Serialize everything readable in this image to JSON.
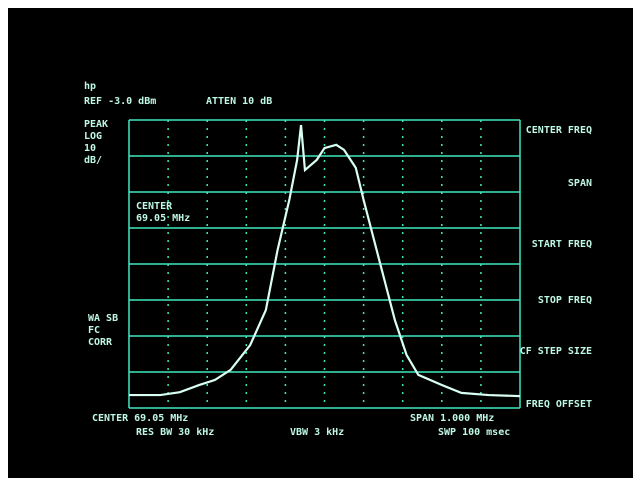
{
  "chart_data": {
    "type": "line",
    "header": {
      "mode": "hp",
      "reference": "REF -3.0 dBm",
      "attenuation": "ATTEN 10 dB"
    },
    "left_labels": [
      "PEAK",
      "LOG",
      "10",
      "dB/"
    ],
    "left_lower_labels": [
      "WA SB",
      "FC",
      "CORR"
    ],
    "center_annotation": [
      "CENTER",
      "69.05 MHz"
    ],
    "softkeys": [
      "CENTER FREQ",
      "SPAN",
      "START FREQ",
      "STOP FREQ",
      "CF STEP SIZE",
      "FREQ OFFSET"
    ],
    "footer": {
      "center": "CENTER 69.05 MHz",
      "res_bw": "RES BW 30 kHz",
      "vbw": "VBW 3 kHz",
      "span": "SPAN 1.000 MHz",
      "sweep": "SWP 100 msec"
    },
    "x": [
      68.55,
      68.63,
      68.68,
      68.73,
      68.77,
      68.81,
      68.86,
      68.9,
      68.93,
      68.96,
      68.98,
      68.99,
      69.0,
      69.03,
      69.05,
      69.08,
      69.1,
      69.13,
      69.15,
      69.19,
      69.23,
      69.26,
      69.29,
      69.35,
      69.4,
      69.47,
      69.55
    ],
    "series": [
      {
        "color": "#d8fff0",
        "values": [
          -79.4,
          -79.4,
          -78.6,
          -76.6,
          -75.2,
          -72.4,
          -65.5,
          -55.8,
          -39.1,
          -25.2,
          -14.1,
          -4.4,
          -16.9,
          -14.1,
          -10.8,
          -9.9,
          -11.3,
          -16.3,
          -25.2,
          -41.9,
          -58.6,
          -68.3,
          -73.8,
          -76.6,
          -78.8,
          -79.4,
          -79.7
        ]
      }
    ],
    "xlim": [
      68.55,
      69.55
    ],
    "ylim": [
      -83,
      -3
    ],
    "xticks": [
      68.55,
      68.65,
      68.75,
      68.85,
      68.95,
      69.05,
      69.15,
      69.25,
      69.35,
      69.45,
      69.55
    ],
    "yticks": [
      -83,
      -73,
      -63,
      -53,
      -43,
      -33,
      -23,
      -13,
      -3
    ],
    "grid": true,
    "color": "#3fe8c0"
  }
}
